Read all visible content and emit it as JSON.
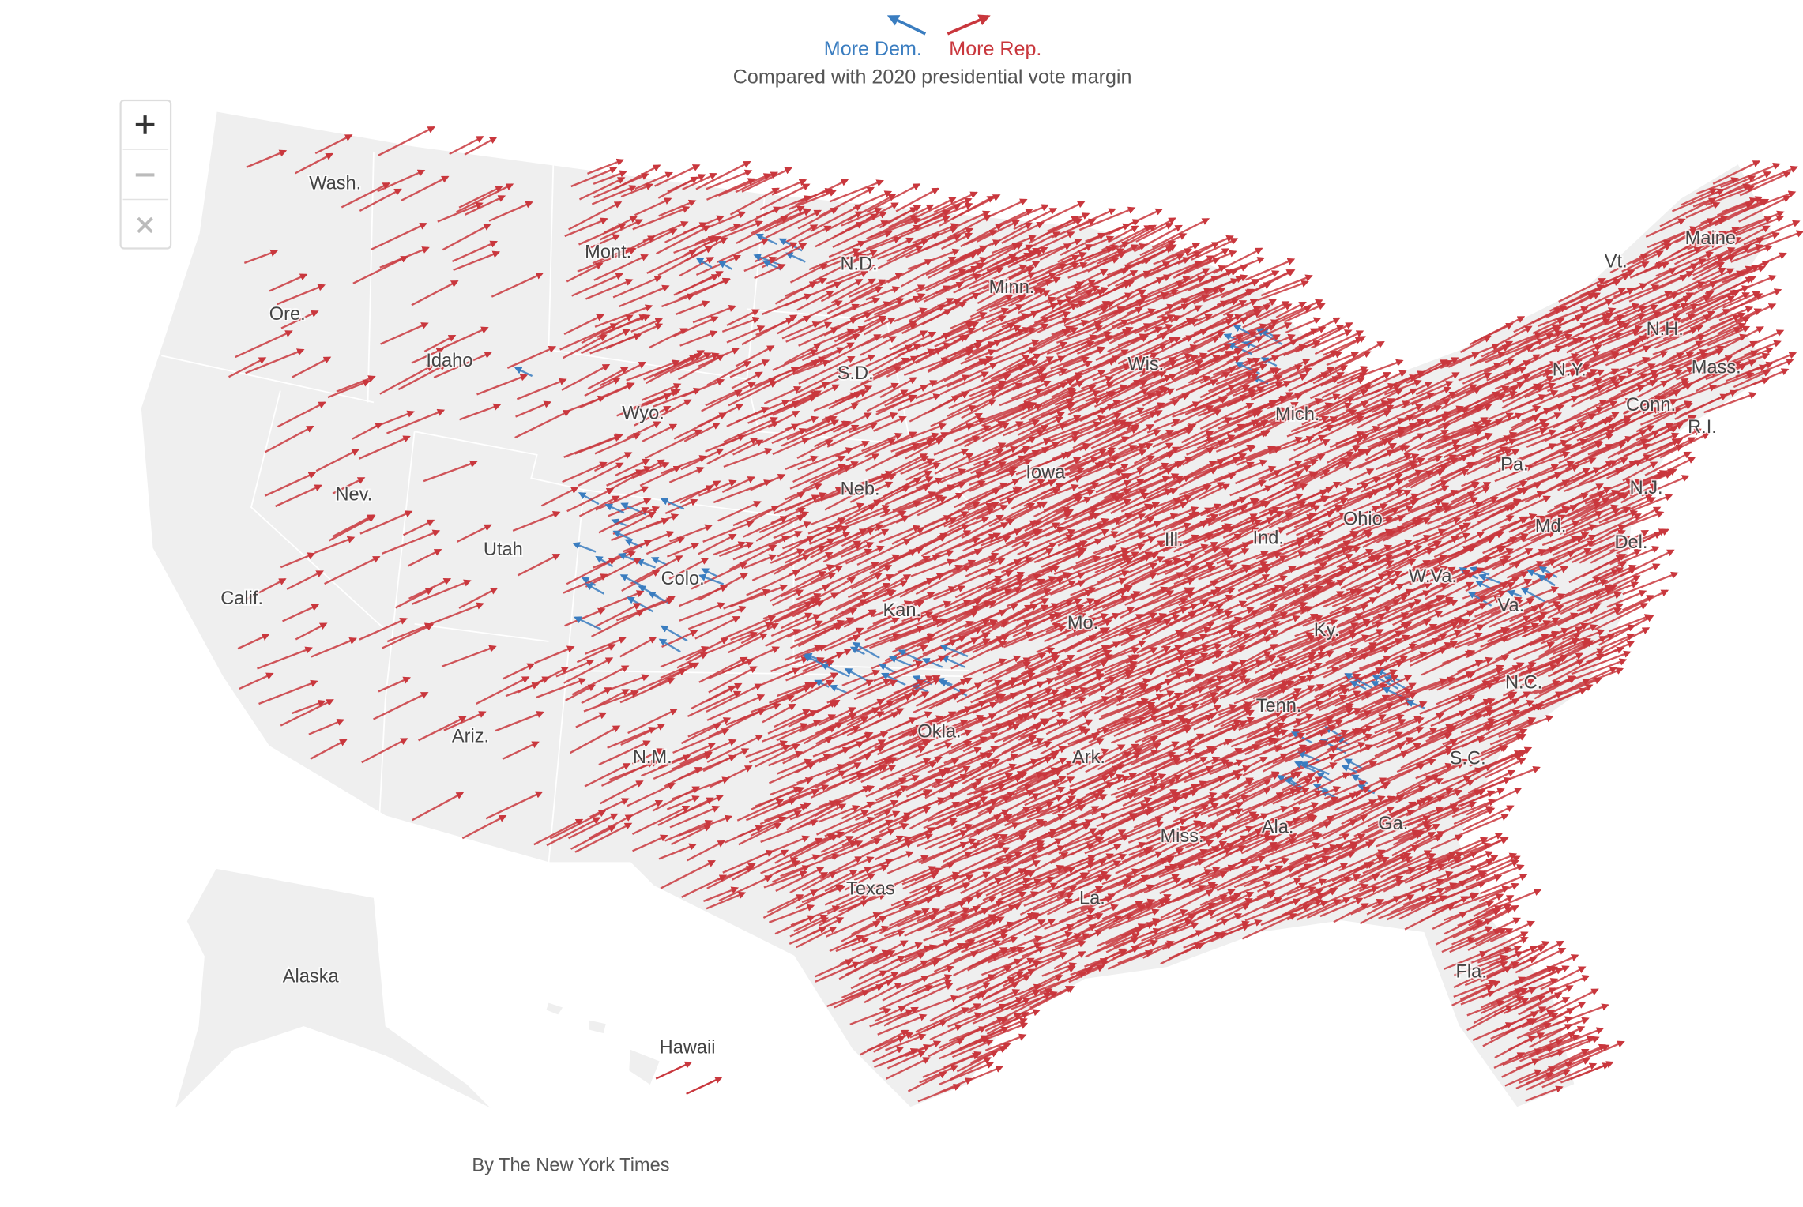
{
  "legend": {
    "dem": "More Dem.",
    "rep": "More Rep.",
    "dem_color": "#3a7dc0",
    "rep_color": "#c9373d"
  },
  "subtitle": "Compared with 2020 presidential vote margin",
  "states": [
    "Wash.",
    "Mont.",
    "N.D.",
    "Minn.",
    "Ore.",
    "Idaho",
    "S.D.",
    "Wis.",
    "Wyo.",
    "Mich.",
    "Iowa",
    "Nev.",
    "Neb.",
    "Utah",
    "Colo.",
    "Calif.",
    "Kan.",
    "Mo.",
    "Ill.",
    "Ind.",
    "Ohio",
    "Ky.",
    "W.Va.",
    "Va.",
    "Pa.",
    "N.Y.",
    "Vt.",
    "Maine",
    "N.H.",
    "Mass.",
    "Conn.",
    "R.I.",
    "N.J.",
    "Md.",
    "Del.",
    "N.C.",
    "Tenn.",
    "S.C.",
    "Okla.",
    "Ark.",
    "N.M.",
    "Ariz.",
    "Ga.",
    "Ala.",
    "Miss.",
    "La.",
    "Texas",
    "Fla.",
    "Alaska",
    "Hawaii"
  ],
  "credit": "By The New York Times"
}
